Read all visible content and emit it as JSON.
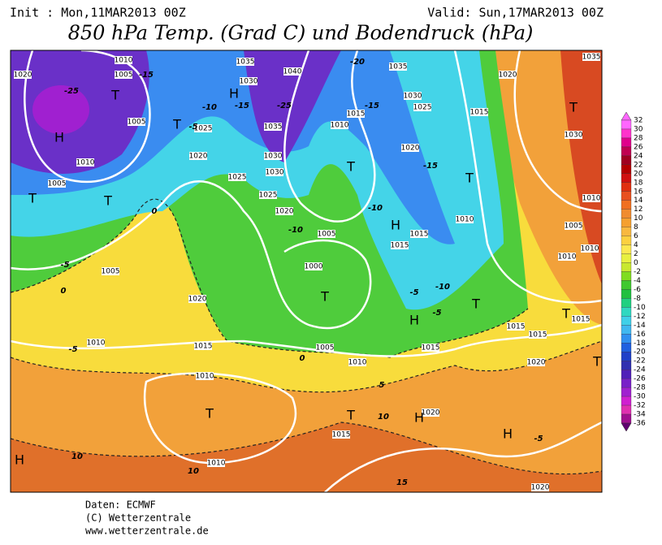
{
  "header": {
    "init": "Init : Mon,11MAR2013 00Z",
    "valid": "Valid: Sun,17MAR2013 00Z",
    "title": "850 hPa Temp. (Grad C) und Bodendruck (hPa)"
  },
  "map": {
    "pressure_labels": [
      "1010",
      "1020",
      "1005",
      "1005",
      "1010",
      "1005",
      "1005",
      "1020",
      "1010",
      "1015",
      "1010",
      "1010",
      "1005",
      "1010",
      "1015",
      "1020",
      "1015",
      "1020",
      "1015",
      "1015",
      "1035",
      "1040",
      "1030",
      "1035",
      "1030",
      "1030",
      "1025",
      "1020",
      "1025",
      "1025",
      "1020",
      "1010",
      "1015",
      "1035",
      "1030",
      "1025",
      "1020",
      "1015",
      "1020",
      "1030",
      "1035",
      "1010",
      "1005",
      "1010",
      "1015",
      "1015",
      "1005",
      "1000",
      "1010",
      "1010",
      "1015",
      "1020"
    ],
    "temperature_labels": [
      "-25",
      "-15",
      "-10",
      "-15",
      "-25",
      "-20",
      "-15",
      "-15",
      "-10",
      "-10",
      "-5",
      "-5",
      "0",
      "0",
      "-5",
      "0",
      "5",
      "10",
      "10",
      "15",
      "10",
      "-5",
      "-10",
      "-5",
      "-5"
    ],
    "systems": [
      "H",
      "T",
      "T",
      "T",
      "T",
      "H",
      "T",
      "H",
      "T",
      "T",
      "T",
      "H",
      "T",
      "T",
      "T",
      "T",
      "H",
      "H",
      "H",
      "T"
    ]
  },
  "colorbar": {
    "labels": [
      32,
      30,
      28,
      26,
      24,
      22,
      20,
      18,
      16,
      14,
      12,
      10,
      8,
      6,
      4,
      2,
      0,
      -2,
      -4,
      -6,
      -8,
      -10,
      -12,
      -14,
      -16,
      -18,
      -20,
      -22,
      -24,
      -26,
      -28,
      -30,
      -32,
      -34,
      -36
    ],
    "colors": [
      "#ff66ff",
      "#ff33cc",
      "#e0008c",
      "#c00050",
      "#a00020",
      "#b40000",
      "#d01010",
      "#e03010",
      "#e85020",
      "#f07020",
      "#f08c30",
      "#f5a030",
      "#f8b840",
      "#fcd040",
      "#fce850",
      "#e8f040",
      "#c8e830",
      "#80dc20",
      "#40c830",
      "#20c040",
      "#20d080",
      "#30d8c0",
      "#40d0e8",
      "#40b8f0",
      "#3090f0",
      "#2060e0",
      "#2040c8",
      "#3030b0",
      "#5020b8",
      "#7820c8",
      "#a020d0",
      "#d020d0",
      "#e030b0",
      "#a01090",
      "#600070"
    ]
  },
  "footer": [
    "Daten: ECMWF",
    "(C) Wetterzentrale",
    "www.wetterzentrale.de"
  ]
}
